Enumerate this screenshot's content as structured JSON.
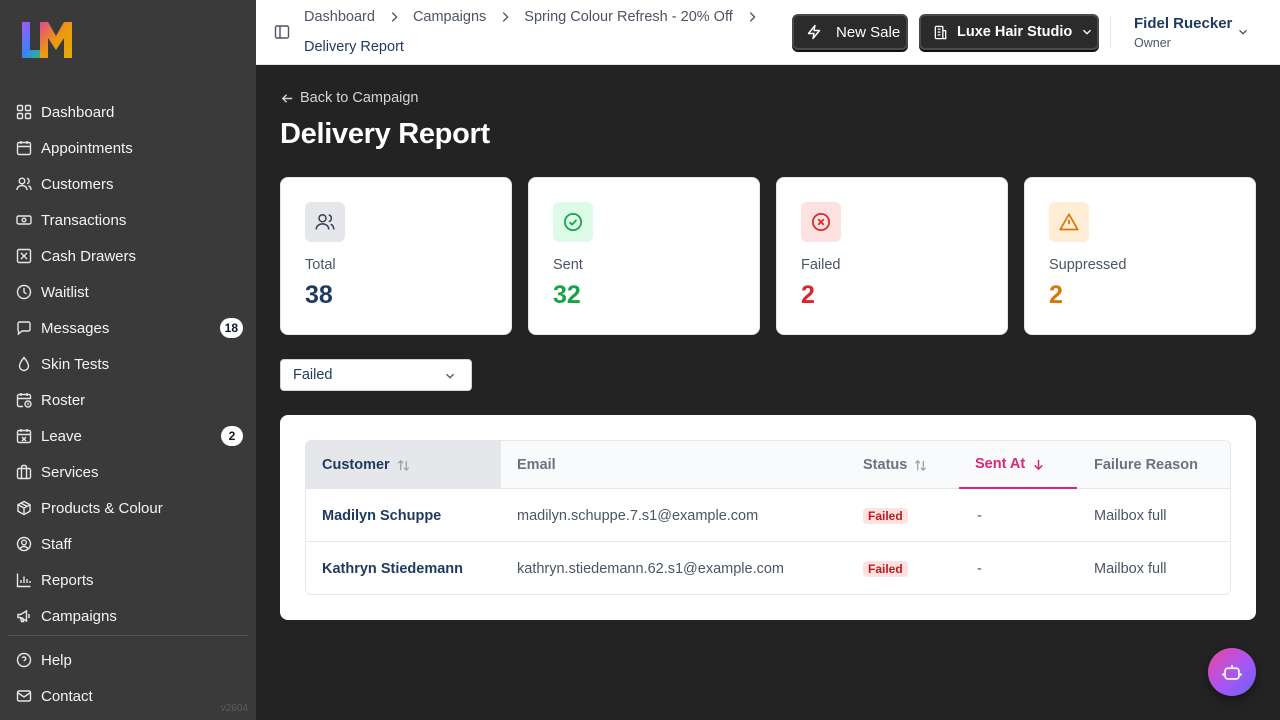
{
  "app": {
    "logo_text": "LM",
    "version": "v2604"
  },
  "sidebar": {
    "items": [
      {
        "label": "Dashboard",
        "icon": "grid-icon"
      },
      {
        "label": "Appointments",
        "icon": "calendar-icon"
      },
      {
        "label": "Customers",
        "icon": "users-icon"
      },
      {
        "label": "Transactions",
        "icon": "banknote-icon"
      },
      {
        "label": "Cash Drawers",
        "icon": "square-x-icon"
      },
      {
        "label": "Waitlist",
        "icon": "clock-icon"
      },
      {
        "label": "Messages",
        "icon": "message-icon",
        "badge": "18"
      },
      {
        "label": "Skin Tests",
        "icon": "droplet-icon"
      },
      {
        "label": "Roster",
        "icon": "calendar-clock-icon"
      },
      {
        "label": "Leave",
        "icon": "calendar-x-icon",
        "badge": "2"
      },
      {
        "label": "Services",
        "icon": "briefcase-icon"
      },
      {
        "label": "Products & Colour",
        "icon": "package-icon"
      },
      {
        "label": "Staff",
        "icon": "user-circle-icon"
      },
      {
        "label": "Reports",
        "icon": "bar-chart-icon"
      },
      {
        "label": "Campaigns",
        "icon": "megaphone-icon"
      }
    ],
    "bottom": [
      {
        "label": "Help",
        "icon": "help-circle-icon"
      },
      {
        "label": "Contact",
        "icon": "mail-icon"
      }
    ]
  },
  "topbar": {
    "breadcrumbs": [
      "Dashboard",
      "Campaigns",
      "Spring Colour Refresh - 20% Off",
      "Delivery Report"
    ],
    "new_sale_label": "New Sale",
    "studio_label": "Luxe Hair Studio",
    "user_name": "Fidel Ruecker",
    "user_role": "Owner"
  },
  "main": {
    "back_label": "Back to Campaign",
    "title": "Delivery Report",
    "stats": [
      {
        "label": "Total",
        "value": "38",
        "icon": "users-icon",
        "color": "#1e3a5f",
        "bg": "#e5e7eb"
      },
      {
        "label": "Sent",
        "value": "32",
        "icon": "check-circle-icon",
        "color": "#16a34a",
        "bg": "#dcfce7"
      },
      {
        "label": "Failed",
        "value": "2",
        "icon": "x-circle-icon",
        "color": "#dc2626",
        "bg": "#fee2e2"
      },
      {
        "label": "Suppressed",
        "value": "2",
        "icon": "alert-triangle-icon",
        "color": "#d97706",
        "bg": "#ffedd5"
      }
    ],
    "filter_value": "Failed",
    "table": {
      "columns": [
        "Customer",
        "Email",
        "Status",
        "Sent At",
        "Failure Reason"
      ],
      "rows": [
        {
          "customer": "Madilyn Schuppe",
          "email": "madilyn.schuppe.7.s1@example.com",
          "status": "Failed",
          "sent_at": "-",
          "reason": "Mailbox full"
        },
        {
          "customer": "Kathryn Stiedemann",
          "email": "kathryn.stiedemann.62.s1@example.com",
          "status": "Failed",
          "sent_at": "-",
          "reason": "Mailbox full"
        }
      ]
    }
  }
}
